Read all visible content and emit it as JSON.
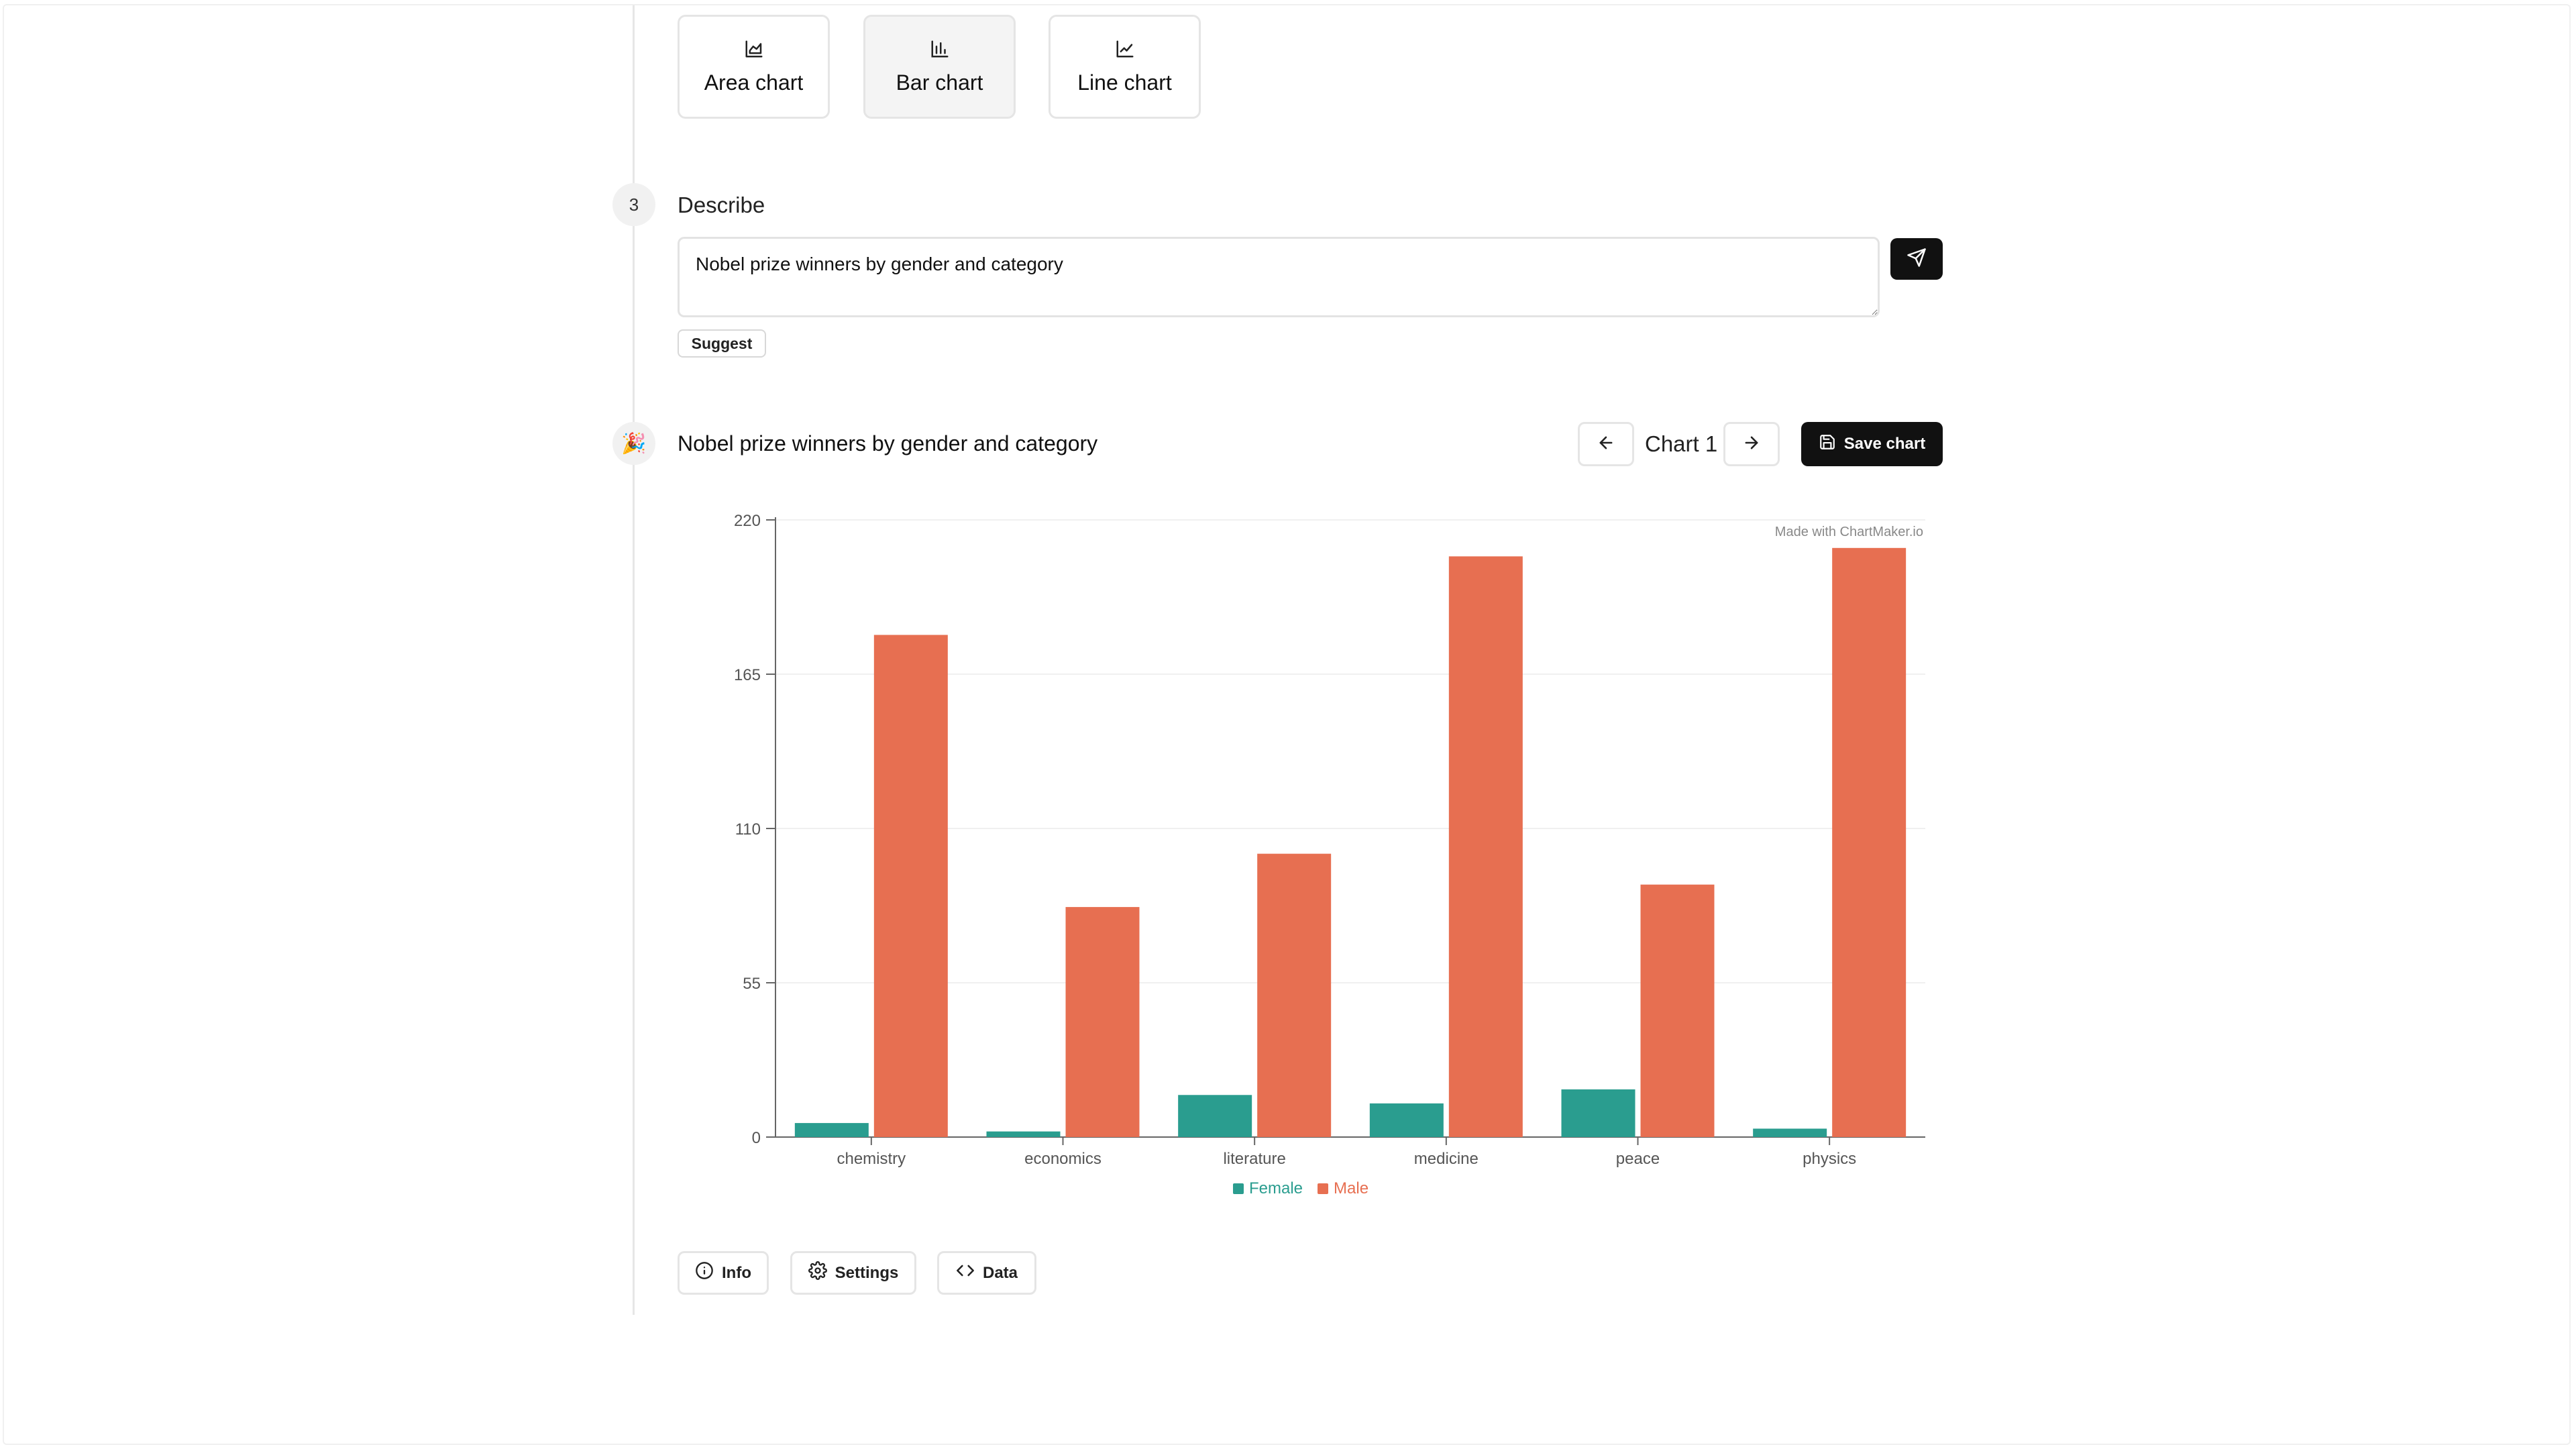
{
  "chart_types": [
    {
      "label": "Area chart",
      "icon": "area-chart-icon",
      "active": false
    },
    {
      "label": "Bar chart",
      "icon": "bar-chart-icon",
      "active": true
    },
    {
      "label": "Line chart",
      "icon": "line-chart-icon",
      "active": false
    }
  ],
  "describe_step": {
    "number": "3",
    "title": "Describe",
    "input_value": "Nobel prize winners by gender and category",
    "suggest_label": "Suggest",
    "send_icon": "send-icon"
  },
  "result": {
    "emoji": "🎉",
    "title": "Nobel prize winners by gender and category",
    "chart_name": "Chart 1",
    "prev_icon": "arrow-left-icon",
    "next_icon": "arrow-right-icon",
    "save_label": "Save chart",
    "save_icon": "save-icon",
    "watermark": "Made with ChartMaker.io"
  },
  "chart_data": {
    "type": "bar",
    "title": "",
    "xlabel": "",
    "ylabel": "",
    "categories": [
      "chemistry",
      "economics",
      "literature",
      "medicine",
      "peace",
      "physics"
    ],
    "series": [
      {
        "name": "Female",
        "values": [
          5,
          2,
          15,
          12,
          17,
          3
        ],
        "color": "#2a9d8f"
      },
      {
        "name": "Male",
        "values": [
          179,
          82,
          101,
          207,
          90,
          210
        ],
        "color": "#e76f51"
      }
    ],
    "yticks": [
      0,
      55,
      110,
      165,
      220
    ],
    "ylim": [
      0,
      220
    ],
    "grid": true,
    "legend_position": "bottom-center"
  },
  "bottom_actions": [
    {
      "label": "Info",
      "icon": "info-icon"
    },
    {
      "label": "Settings",
      "icon": "gear-icon"
    },
    {
      "label": "Data",
      "icon": "code-icon"
    }
  ],
  "colors": {
    "female": "#2a9d8f",
    "male": "#e76f51",
    "primary_button": "#111111"
  }
}
